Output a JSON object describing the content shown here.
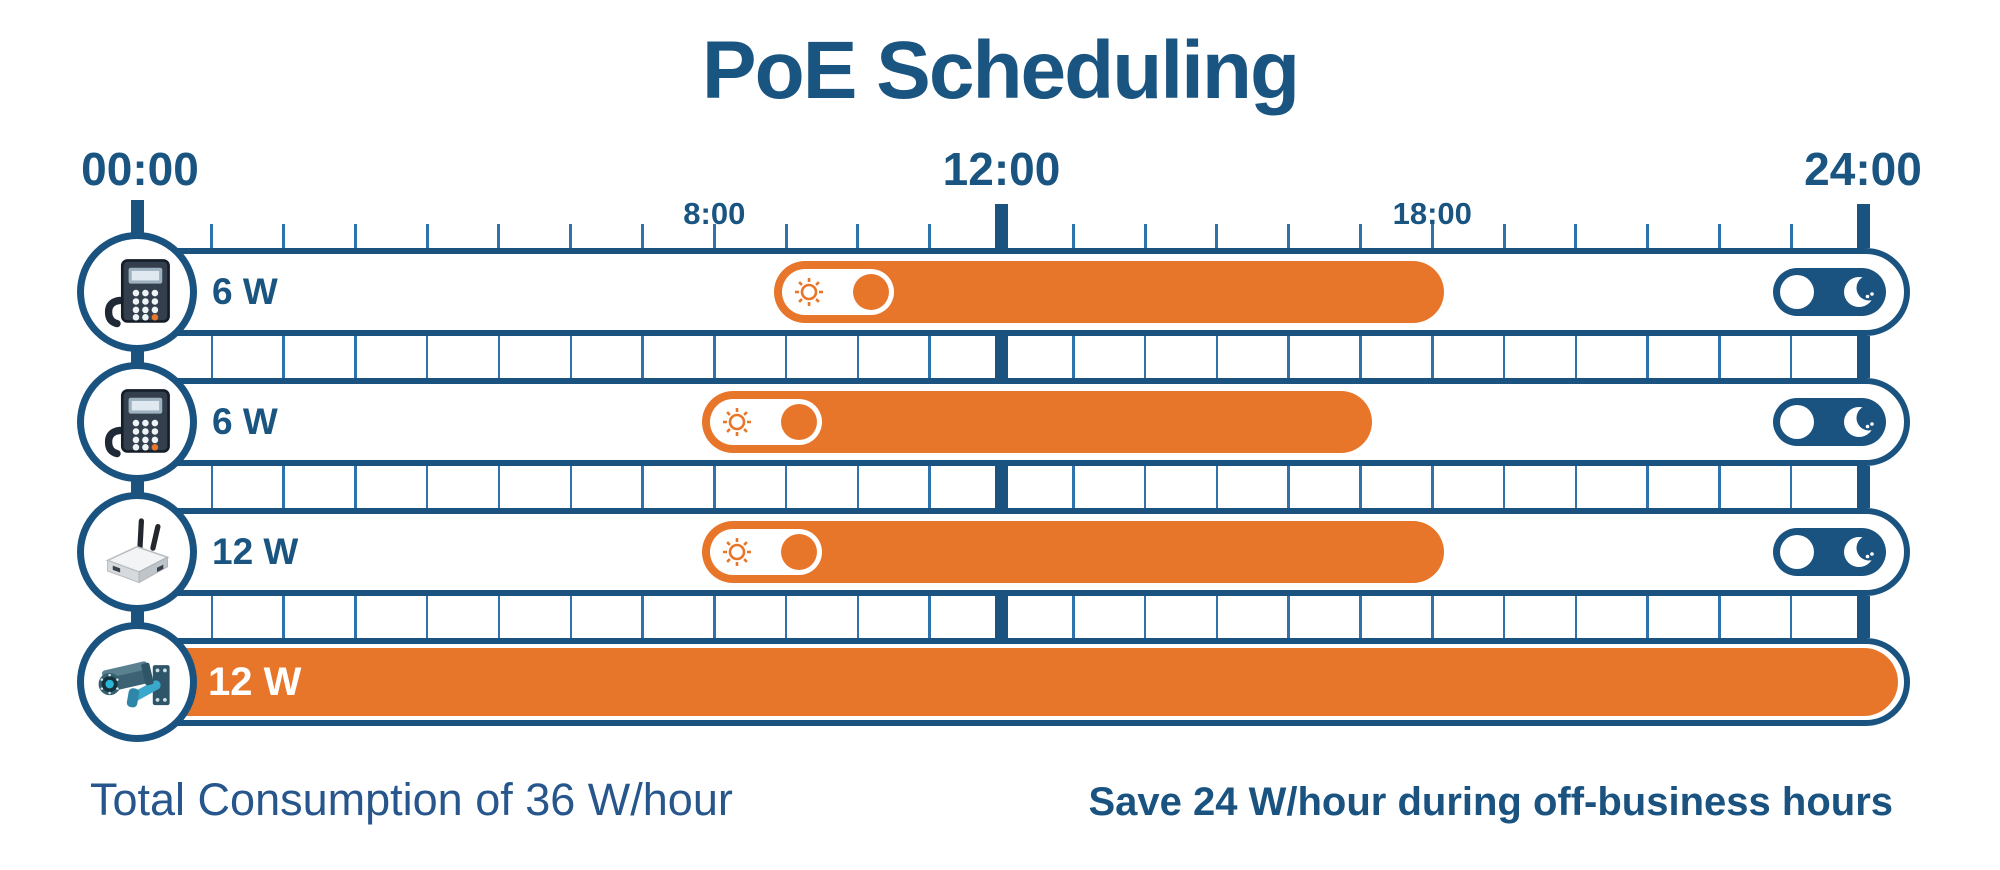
{
  "title": "PoE Scheduling",
  "timeline": {
    "total_hours": 24,
    "tick_interval_hours": 1,
    "major_labels": [
      {
        "text": "00:00",
        "hour": 0
      },
      {
        "text": "12:00",
        "hour": 12
      },
      {
        "text": "24:00",
        "hour": 24
      }
    ],
    "minor_labels": [
      {
        "text": "8:00",
        "hour": 8
      },
      {
        "text": "18:00",
        "hour": 18
      }
    ]
  },
  "rows": [
    {
      "device": "ip-phone",
      "icon": "phone-icon",
      "power_label": "6 W",
      "power_watts": 6,
      "schedule_start_hour": 9,
      "schedule_end_hour": 18,
      "always_on": false,
      "day_toggle": "on",
      "night_toggle": "off"
    },
    {
      "device": "ip-phone",
      "icon": "phone-icon",
      "power_label": "6 W",
      "power_watts": 6,
      "schedule_start_hour": 8,
      "schedule_end_hour": 17,
      "always_on": false,
      "day_toggle": "on",
      "night_toggle": "off"
    },
    {
      "device": "wireless-access-point",
      "icon": "access-point-icon",
      "power_label": "12 W",
      "power_watts": 12,
      "schedule_start_hour": 8,
      "schedule_end_hour": 18,
      "always_on": false,
      "day_toggle": "on",
      "night_toggle": "off"
    },
    {
      "device": "security-camera",
      "icon": "camera-icon",
      "power_label": "12 W",
      "power_watts": 12,
      "schedule_start_hour": 0,
      "schedule_end_hour": 24,
      "always_on": true
    }
  ],
  "footer": {
    "left_text": "Total Consumption of 36 W/hour",
    "right_text": "Save 24 W/hour during off-business hours"
  },
  "colors": {
    "navy": "#1b5380",
    "title_blue": "#1a5480",
    "grid_blue": "#2e73ad",
    "orange": "#e8762a",
    "footer_left_blue": "#27568c",
    "white": "#ffffff"
  }
}
